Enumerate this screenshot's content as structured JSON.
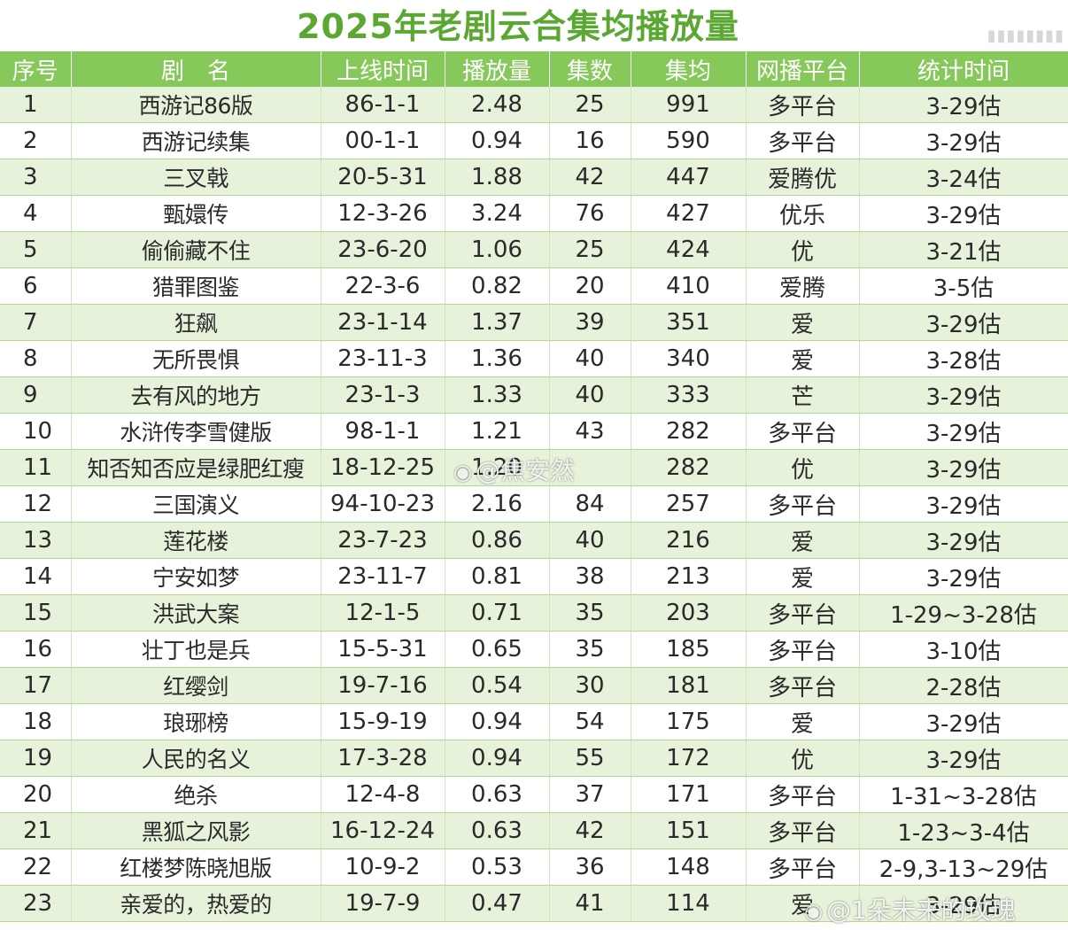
{
  "title": "2025年老剧云合集均播放量",
  "headers": [
    "序号",
    "剧　名",
    "上线时间",
    "播放量",
    "集数",
    "集均",
    "网播平台",
    "统计时间"
  ],
  "rows": [
    [
      "1",
      "西游记86版",
      "86-1-1",
      "2.48",
      "25",
      "991",
      "多平台",
      "3-29估"
    ],
    [
      "2",
      "西游记续集",
      "00-1-1",
      "0.94",
      "16",
      "590",
      "多平台",
      "3-29估"
    ],
    [
      "3",
      "三叉戟",
      "20-5-31",
      "1.88",
      "42",
      "447",
      "爱腾优",
      "3-24估"
    ],
    [
      "4",
      "甄嬛传",
      "12-3-26",
      "3.24",
      "76",
      "427",
      "优乐",
      "3-29估"
    ],
    [
      "5",
      "偷偷藏不住",
      "23-6-20",
      "1.06",
      "25",
      "424",
      "优",
      "3-21估"
    ],
    [
      "6",
      "猎罪图鉴",
      "22-3-6",
      "0.82",
      "20",
      "410",
      "爱腾",
      "3-5估"
    ],
    [
      "7",
      "狂飙",
      "23-1-14",
      "1.37",
      "39",
      "351",
      "爱",
      "3-29估"
    ],
    [
      "8",
      "无所畏惧",
      "23-11-3",
      "1.36",
      "40",
      "340",
      "爱",
      "3-28估"
    ],
    [
      "9",
      "去有风的地方",
      "23-1-3",
      "1.33",
      "40",
      "333",
      "芒",
      "3-29估"
    ],
    [
      "10",
      "水浒传李雪健版",
      "98-1-1",
      "1.21",
      "43",
      "282",
      "多平台",
      "3-29估"
    ],
    [
      "11",
      "知否知否应是绿肥红瘦",
      "18-12-25",
      "1.20",
      "",
      "282",
      "优",
      "3-29估"
    ],
    [
      "12",
      "三国演义",
      "94-10-23",
      "2.16",
      "84",
      "257",
      "多平台",
      "3-29估"
    ],
    [
      "13",
      "莲花楼",
      "23-7-23",
      "0.86",
      "40",
      "216",
      "爱",
      "3-29估"
    ],
    [
      "14",
      "宁安如梦",
      "23-11-7",
      "0.81",
      "38",
      "213",
      "爱",
      "3-29估"
    ],
    [
      "15",
      "洪武大案",
      "12-1-5",
      "0.71",
      "35",
      "203",
      "多平台",
      "1-29~3-28估"
    ],
    [
      "16",
      "壮丁也是兵",
      "15-5-31",
      "0.65",
      "35",
      "185",
      "多平台",
      "3-10估"
    ],
    [
      "17",
      "红缨剑",
      "19-7-16",
      "0.54",
      "30",
      "181",
      "多平台",
      "2-28估"
    ],
    [
      "18",
      "琅琊榜",
      "15-9-19",
      "0.94",
      "54",
      "175",
      "爱",
      "3-29估"
    ],
    [
      "19",
      "人民的名义",
      "17-3-28",
      "0.94",
      "55",
      "172",
      "优",
      "3-29估"
    ],
    [
      "20",
      "绝杀",
      "12-4-8",
      "0.63",
      "37",
      "171",
      "多平台",
      "1-31~3-28估"
    ],
    [
      "21",
      "黑狐之风影",
      "16-12-24",
      "0.63",
      "42",
      "151",
      "多平台",
      "1-23~3-4估"
    ],
    [
      "22",
      "红楼梦陈晓旭版",
      "10-9-2",
      "0.53",
      "36",
      "148",
      "多平台",
      "2-9,3-13~29估"
    ],
    [
      "23",
      "亲爱的，热爱的",
      "19-7-9",
      "0.47",
      "41",
      "114",
      "爱",
      "3-29估"
    ]
  ],
  "watermarks": {
    "middle": "@焦安然",
    "bottom": "@1朵未来的玫瑰",
    "icon": "weibo-icon"
  }
}
